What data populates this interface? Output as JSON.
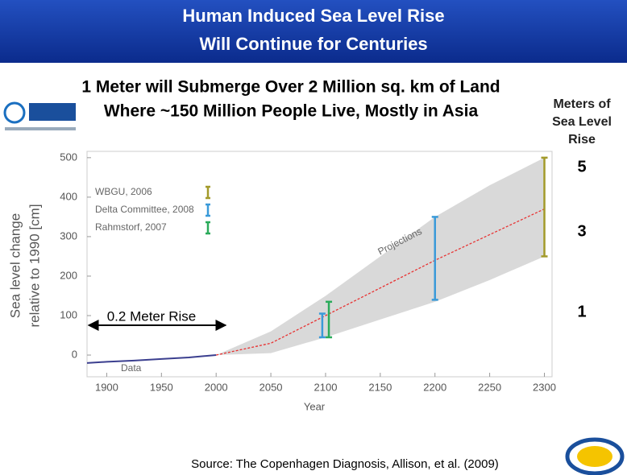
{
  "header": {
    "title_lines": [
      "Human Induced Sea Level Rise",
      "Will Continue for Centuries"
    ]
  },
  "subtitle_lines": [
    "1 Meter will Submerge Over 2 Million sq. km of Land",
    "Where ~150 Million People Live, Mostly in Asia"
  ],
  "side": {
    "heading_lines": [
      "Meters of",
      "Sea Level",
      "Rise"
    ],
    "levels": [
      "5",
      "3",
      "1"
    ]
  },
  "source": "Source: The Copenhagen Diagnosis, Allison, et al. (2009)",
  "chart_data": {
    "type": "line",
    "y_label_lines": [
      "Sea level change",
      "relative to 1990 [cm]"
    ],
    "x_label": "Year",
    "xlim": [
      1882,
      2307
    ],
    "xticks": [
      1900,
      1950,
      2000,
      2050,
      2100,
      2150,
      2200,
      2250,
      2300
    ],
    "ylim": [
      -55,
      516
    ],
    "yticks": [
      0,
      100,
      200,
      300,
      400,
      500
    ],
    "series": [
      {
        "name": "Data",
        "color": "#3b3f8f",
        "dashed": false,
        "x": [
          1882,
          1900,
          1925,
          1950,
          1975,
          2000
        ],
        "values": [
          -20,
          -17,
          -14,
          -10,
          -6,
          0
        ]
      },
      {
        "name": "Projections",
        "color": "#e83030",
        "dashed": true,
        "x": [
          2000,
          2050,
          2100,
          2150,
          2200,
          2250,
          2300
        ],
        "values": [
          0,
          30,
          100,
          170,
          240,
          305,
          370
        ]
      }
    ],
    "band": {
      "color": "#d9d9d9",
      "x": [
        2000,
        2050,
        2100,
        2150,
        2200,
        2250,
        2300
      ],
      "lower": [
        0,
        5,
        45,
        90,
        135,
        190,
        250
      ],
      "upper": [
        0,
        60,
        150,
        250,
        350,
        430,
        500
      ]
    },
    "legend": [
      {
        "name": "WBGU, 2006",
        "color": "#a39a2a"
      },
      {
        "name": "Delta Committee, 2008",
        "color": "#3a9ad9"
      },
      {
        "name": "Rahmstorf, 2007",
        "color": "#2aab5a"
      }
    ],
    "error_bars": [
      {
        "legend": 0,
        "x": 2300,
        "low": 250,
        "high": 500
      },
      {
        "legend": 1,
        "x": 2200,
        "low": 140,
        "high": 350
      },
      {
        "legend": 1,
        "x": 2097,
        "low": 45,
        "high": 105
      },
      {
        "legend": 2,
        "x": 2103,
        "low": 45,
        "high": 135
      }
    ],
    "annotation": "0.2 Meter Rise"
  }
}
